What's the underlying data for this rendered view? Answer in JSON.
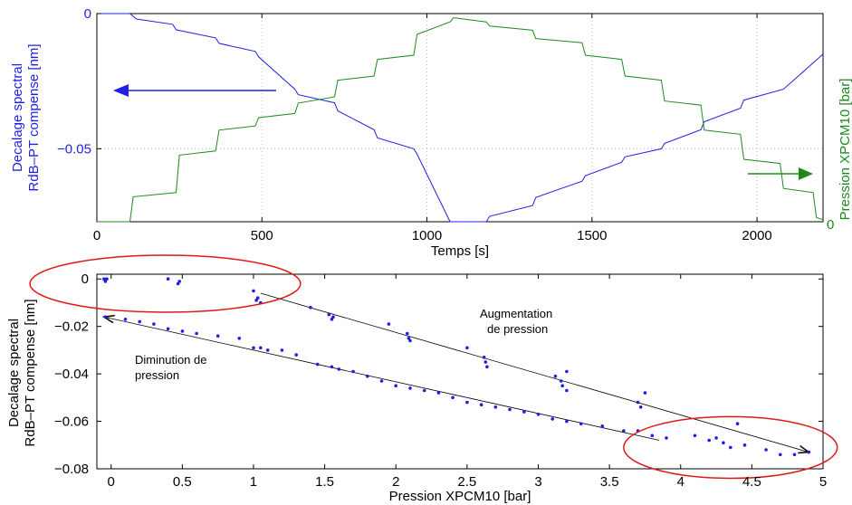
{
  "colors": {
    "blue": "#1f1fe6",
    "green": "#1e8a1e",
    "red": "#e01818",
    "black": "#000000",
    "grid": "#bbbbbb"
  },
  "chart_data": [
    {
      "type": "line",
      "xlabel": "Temps [s]",
      "ylabel_left": [
        "Decalage spectral",
        "RdB–PT compense [nm]"
      ],
      "ylabel_right": "Pression XPCM10 [bar]",
      "xlim": [
        0,
        2200
      ],
      "ylim_left": [
        -0.077,
        0
      ],
      "ylim_right": [
        0,
        5
      ],
      "x_ticks": [
        0,
        500,
        1000,
        1500,
        2000
      ],
      "y_ticks_left": [
        0,
        -0.05
      ],
      "y_tick_labels_left": [
        "0",
        "−0.05"
      ],
      "y_tick_labels_right": [
        "0"
      ],
      "grid": true,
      "series": [
        {
          "axis": "left",
          "color": "blue",
          "points": [
            [
              0,
              0
            ],
            [
              100,
              0
            ],
            [
              120,
              -0.002
            ],
            [
              230,
              -0.004
            ],
            [
              240,
              -0.006
            ],
            [
              360,
              -0.009
            ],
            [
              370,
              -0.011
            ],
            [
              480,
              -0.014
            ],
            [
              490,
              -0.016
            ],
            [
              600,
              -0.028
            ],
            [
              610,
              -0.03
            ],
            [
              720,
              -0.033
            ],
            [
              730,
              -0.036
            ],
            [
              840,
              -0.043
            ],
            [
              850,
              -0.046
            ],
            [
              960,
              -0.05
            ],
            [
              970,
              -0.052
            ],
            [
              1070,
              -0.077
            ],
            [
              1180,
              -0.077
            ],
            [
              1190,
              -0.075
            ],
            [
              1320,
              -0.071
            ],
            [
              1330,
              -0.068
            ],
            [
              1470,
              -0.062
            ],
            [
              1480,
              -0.06
            ],
            [
              1590,
              -0.055
            ],
            [
              1600,
              -0.053
            ],
            [
              1710,
              -0.05
            ],
            [
              1720,
              -0.048
            ],
            [
              1830,
              -0.043
            ],
            [
              1840,
              -0.04
            ],
            [
              1950,
              -0.035
            ],
            [
              1960,
              -0.032
            ],
            [
              2080,
              -0.028
            ],
            [
              2200,
              -0.015
            ]
          ]
        },
        {
          "axis": "right",
          "color": "green",
          "points": [
            [
              0,
              0
            ],
            [
              100,
              0
            ],
            [
              110,
              0.6
            ],
            [
              240,
              0.7
            ],
            [
              250,
              1.6
            ],
            [
              360,
              1.7
            ],
            [
              370,
              2.2
            ],
            [
              480,
              2.3
            ],
            [
              490,
              2.5
            ],
            [
              600,
              2.6
            ],
            [
              610,
              2.85
            ],
            [
              720,
              3.0
            ],
            [
              730,
              3.4
            ],
            [
              840,
              3.5
            ],
            [
              850,
              3.9
            ],
            [
              960,
              4.0
            ],
            [
              970,
              4.5
            ],
            [
              1070,
              4.8
            ],
            [
              1080,
              4.9
            ],
            [
              1180,
              4.8
            ],
            [
              1190,
              4.7
            ],
            [
              1320,
              4.6
            ],
            [
              1330,
              4.4
            ],
            [
              1470,
              4.3
            ],
            [
              1480,
              4.0
            ],
            [
              1590,
              3.9
            ],
            [
              1600,
              3.5
            ],
            [
              1710,
              3.4
            ],
            [
              1720,
              2.9
            ],
            [
              1830,
              2.8
            ],
            [
              1840,
              2.2
            ],
            [
              1950,
              2.1
            ],
            [
              1960,
              1.5
            ],
            [
              2070,
              1.4
            ],
            [
              2080,
              0.8
            ],
            [
              2170,
              0.7
            ],
            [
              2180,
              0.1
            ],
            [
              2200,
              0.05
            ]
          ]
        }
      ],
      "annotations": [
        {
          "kind": "arrow",
          "color": "blue",
          "direction": "left"
        },
        {
          "kind": "arrow",
          "color": "green",
          "direction": "right"
        }
      ]
    },
    {
      "type": "scatter",
      "xlabel": "Pression XPCM10 [bar]",
      "ylabel": [
        "Decalage spectral",
        "RdB–PT compense [nm]"
      ],
      "xlim": [
        -0.1,
        5
      ],
      "ylim": [
        -0.08,
        0.002
      ],
      "x_ticks": [
        0,
        0.5,
        1,
        1.5,
        2,
        2.5,
        3,
        3.5,
        4,
        4.5,
        5
      ],
      "x_tick_labels": [
        "0",
        "0.5",
        "1",
        "1.5",
        "2",
        "2.5",
        "3",
        "3.5",
        "4",
        "4.5",
        "5"
      ],
      "y_ticks": [
        0,
        -0.02,
        -0.04,
        -0.06,
        -0.08
      ],
      "y_tick_labels": [
        "0",
        "−0.02",
        "−0.04",
        "−0.06",
        "−0.08"
      ],
      "grid": false,
      "series": [
        {
          "color": "blue",
          "points": [
            [
              -0.05,
              0.0
            ],
            [
              -0.04,
              -0.001
            ],
            [
              -0.03,
              0.0
            ],
            [
              0.4,
              0.0
            ],
            [
              0.47,
              -0.002
            ],
            [
              0.48,
              -0.001
            ],
            [
              1.0,
              -0.005
            ],
            [
              1.02,
              -0.009
            ],
            [
              1.03,
              -0.008
            ],
            [
              1.05,
              -0.01
            ],
            [
              1.4,
              -0.012
            ],
            [
              1.53,
              -0.015
            ],
            [
              1.55,
              -0.017
            ],
            [
              1.56,
              -0.016
            ],
            [
              1.95,
              -0.019
            ],
            [
              2.08,
              -0.023
            ],
            [
              2.09,
              -0.025
            ],
            [
              2.1,
              -0.026
            ],
            [
              2.5,
              -0.029
            ],
            [
              2.62,
              -0.033
            ],
            [
              2.63,
              -0.035
            ],
            [
              2.64,
              -0.037
            ],
            [
              3.12,
              -0.041
            ],
            [
              3.16,
              -0.043
            ],
            [
              3.17,
              -0.045
            ],
            [
              3.2,
              -0.047
            ],
            [
              3.2,
              -0.039
            ],
            [
              3.7,
              -0.052
            ],
            [
              3.72,
              -0.054
            ],
            [
              3.75,
              -0.048
            ],
            [
              4.1,
              -0.066
            ],
            [
              4.2,
              -0.068
            ],
            [
              4.25,
              -0.067
            ],
            [
              4.3,
              -0.069
            ],
            [
              4.35,
              -0.071
            ],
            [
              4.4,
              -0.061
            ],
            [
              4.45,
              -0.07
            ],
            [
              4.6,
              -0.072
            ],
            [
              4.7,
              -0.074
            ],
            [
              4.8,
              -0.074
            ],
            [
              4.9,
              -0.073
            ],
            [
              -0.04,
              -0.016
            ],
            [
              0.1,
              -0.017
            ],
            [
              0.2,
              -0.018
            ],
            [
              0.3,
              -0.019
            ],
            [
              0.4,
              -0.021
            ],
            [
              0.5,
              -0.022
            ],
            [
              0.6,
              -0.023
            ],
            [
              0.75,
              -0.024
            ],
            [
              0.9,
              -0.025
            ],
            [
              1.0,
              -0.029
            ],
            [
              1.05,
              -0.029
            ],
            [
              1.1,
              -0.03
            ],
            [
              1.2,
              -0.03
            ],
            [
              1.3,
              -0.032
            ],
            [
              1.45,
              -0.036
            ],
            [
              1.55,
              -0.037
            ],
            [
              1.6,
              -0.038
            ],
            [
              1.7,
              -0.039
            ],
            [
              1.8,
              -0.041
            ],
            [
              1.9,
              -0.043
            ],
            [
              2.0,
              -0.045
            ],
            [
              2.1,
              -0.046
            ],
            [
              2.2,
              -0.047
            ],
            [
              2.3,
              -0.048
            ],
            [
              2.4,
              -0.05
            ],
            [
              2.5,
              -0.052
            ],
            [
              2.6,
              -0.053
            ],
            [
              2.7,
              -0.054
            ],
            [
              2.8,
              -0.055
            ],
            [
              2.9,
              -0.056
            ],
            [
              3.0,
              -0.057
            ],
            [
              3.1,
              -0.059
            ],
            [
              3.2,
              -0.06
            ],
            [
              3.3,
              -0.061
            ],
            [
              3.45,
              -0.062
            ],
            [
              3.6,
              -0.064
            ],
            [
              3.7,
              -0.064
            ],
            [
              3.8,
              -0.066
            ],
            [
              3.9,
              -0.067
            ]
          ]
        }
      ],
      "lines": [
        {
          "from": [
            1.05,
            -0.006
          ],
          "to": [
            4.9,
            -0.073
          ],
          "arrow_end": true
        },
        {
          "from": [
            3.85,
            -0.068
          ],
          "to": [
            -0.05,
            -0.016
          ],
          "arrow_end": true
        }
      ],
      "ellipses": [
        {
          "cx": 0.38,
          "cy": -0.002,
          "rx": 0.95,
          "ry": 0.012
        },
        {
          "cx": 4.35,
          "cy": -0.071,
          "rx": 0.75,
          "ry": 0.013
        }
      ],
      "annotations": [
        {
          "text_lines": [
            "Augmentation",
            "de pression"
          ],
          "x": 2.6,
          "y": -0.018
        },
        {
          "text_lines": [
            "Diminution de",
            "pression"
          ],
          "x": 0.15,
          "y": -0.034
        }
      ]
    }
  ]
}
